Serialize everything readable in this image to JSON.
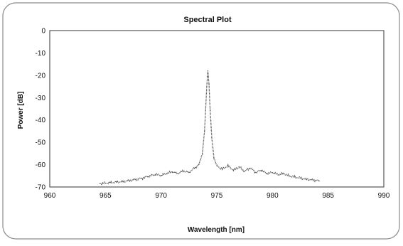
{
  "chart_data": {
    "type": "line",
    "title": "Spectral Plot",
    "xlabel": "Wavelength [nm]",
    "ylabel": "Power [dB]",
    "xlim": [
      960,
      990
    ],
    "ylim": [
      -70,
      0
    ],
    "xticks": [
      960,
      965,
      970,
      975,
      980,
      985,
      990
    ],
    "yticks": [
      0,
      -10,
      -20,
      -30,
      -40,
      -50,
      -60,
      -70
    ],
    "grid": false,
    "legend": "none",
    "line_color": "#555555",
    "line_style": "dotted",
    "series": [
      {
        "name": "",
        "peak": {
          "x": 974.2,
          "y": -18
        },
        "points": [
          [
            964.5,
            -68.5
          ],
          [
            965.0,
            -68.3
          ],
          [
            965.5,
            -68.0
          ],
          [
            966.0,
            -67.8
          ],
          [
            966.5,
            -67.6
          ],
          [
            967.0,
            -67.2
          ],
          [
            967.5,
            -66.8
          ],
          [
            968.0,
            -66.4
          ],
          [
            968.5,
            -65.8
          ],
          [
            969.0,
            -65.0
          ],
          [
            969.5,
            -64.4
          ],
          [
            970.0,
            -64.8
          ],
          [
            970.5,
            -64.0
          ],
          [
            971.0,
            -63.2
          ],
          [
            971.5,
            -64.0
          ],
          [
            972.0,
            -62.8
          ],
          [
            972.5,
            -63.5
          ],
          [
            973.0,
            -61.5
          ],
          [
            973.4,
            -60.0
          ],
          [
            973.7,
            -55.0
          ],
          [
            973.9,
            -45.0
          ],
          [
            974.0,
            -35.0
          ],
          [
            974.1,
            -25.0
          ],
          [
            974.2,
            -18.0
          ],
          [
            974.3,
            -24.0
          ],
          [
            974.4,
            -35.0
          ],
          [
            974.55,
            -48.0
          ],
          [
            974.75,
            -57.0
          ],
          [
            975.0,
            -60.5
          ],
          [
            975.5,
            -62.0
          ],
          [
            976.0,
            -60.5
          ],
          [
            976.5,
            -62.5
          ],
          [
            977.0,
            -61.0
          ],
          [
            977.5,
            -63.0
          ],
          [
            978.0,
            -61.5
          ],
          [
            978.5,
            -63.5
          ],
          [
            979.0,
            -62.5
          ],
          [
            979.5,
            -64.0
          ],
          [
            980.0,
            -63.5
          ],
          [
            980.5,
            -64.5
          ],
          [
            981.0,
            -64.0
          ],
          [
            981.5,
            -65.0
          ],
          [
            982.0,
            -65.5
          ],
          [
            982.5,
            -66.0
          ],
          [
            983.0,
            -66.5
          ],
          [
            983.5,
            -66.8
          ],
          [
            984.2,
            -67.2
          ]
        ]
      }
    ]
  }
}
